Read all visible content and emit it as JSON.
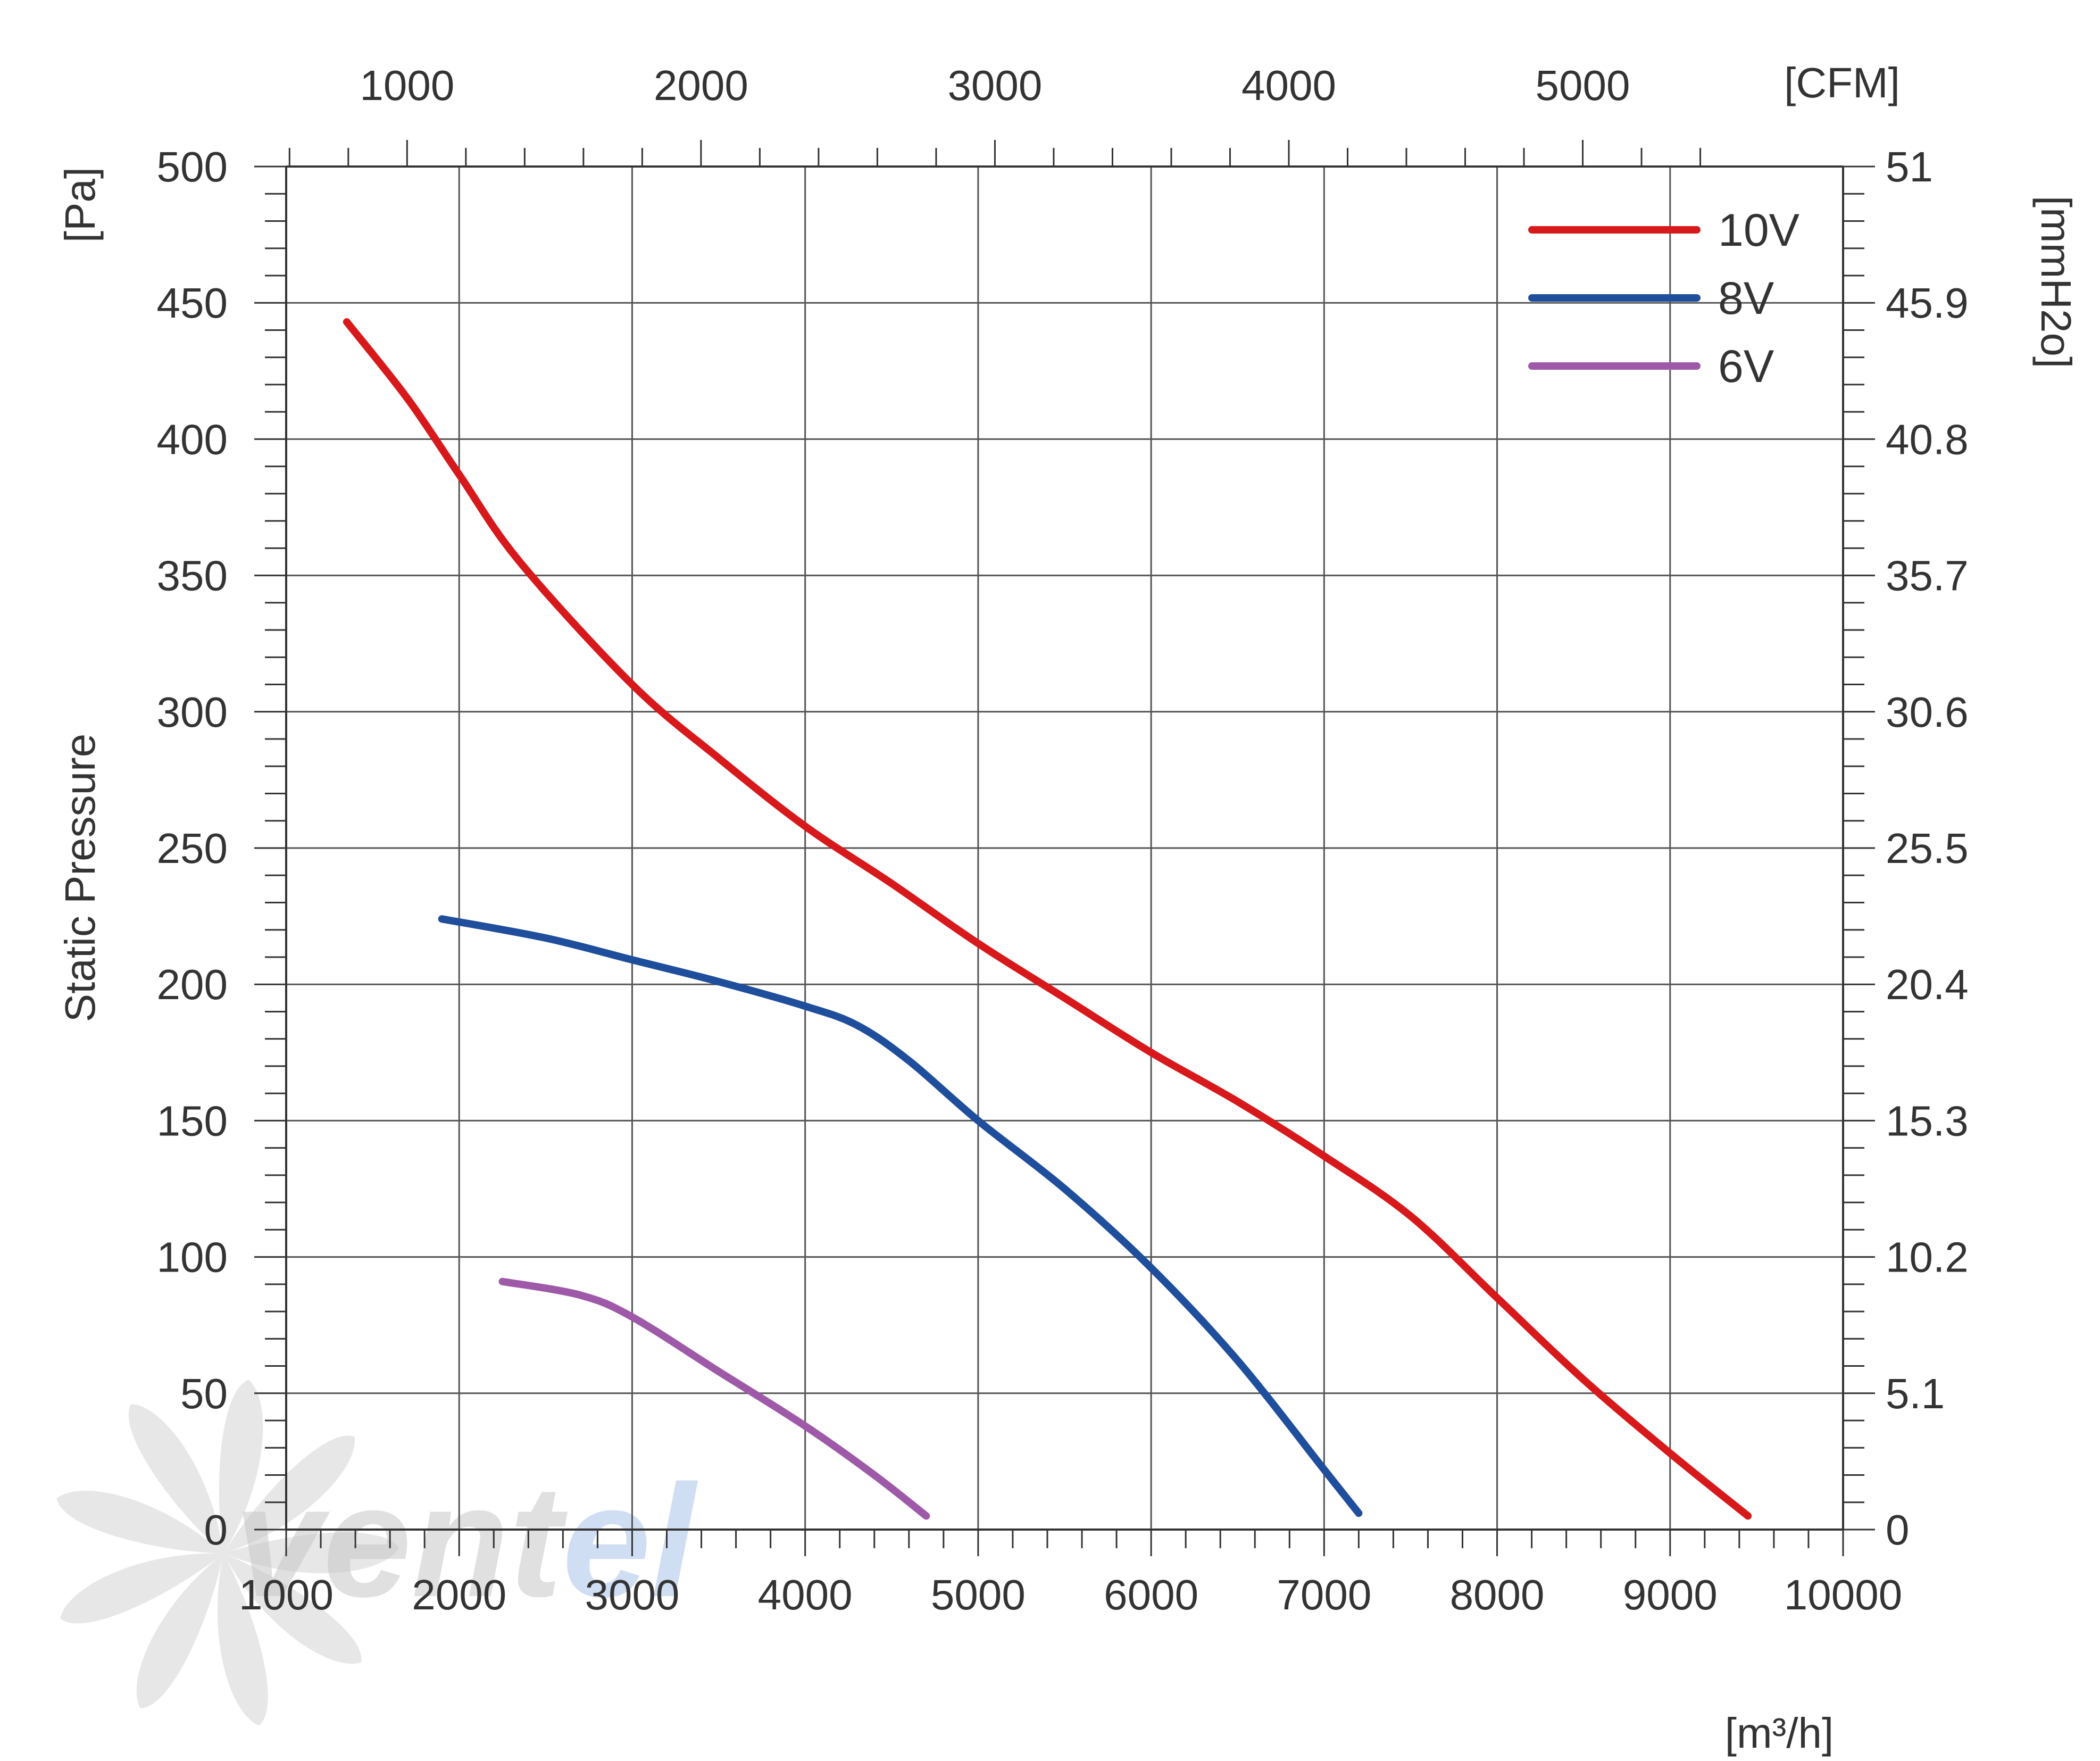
{
  "chart_data": {
    "type": "line",
    "title": "",
    "ylabel": "Static Pressure",
    "y_unit": "[Pa]",
    "y2_unit": "[mmH2o]",
    "x_unit": "[m³/h]",
    "x2_unit": "[CFM]",
    "xlim": [
      1000,
      10000
    ],
    "ylim": [
      0,
      500
    ],
    "grid": true,
    "legend_position": "top-right",
    "x_ticks": [
      1000,
      2000,
      3000,
      4000,
      5000,
      6000,
      7000,
      8000,
      9000,
      10000
    ],
    "y_ticks": [
      0,
      50,
      100,
      150,
      200,
      250,
      300,
      350,
      400,
      450,
      500
    ],
    "y2_ticks": [
      "0",
      "5.1",
      "10.2",
      "15.3",
      "20.4",
      "25.5",
      "30.6",
      "35.7",
      "40.8",
      "45.9",
      "51"
    ],
    "x2_ticks": [
      1000,
      2000,
      3000,
      4000,
      5000
    ],
    "series": [
      {
        "name": "10V",
        "color": "#d7191c",
        "x": [
          1350,
          1700,
          2000,
          2350,
          3000,
          3500,
          4000,
          4500,
          5000,
          5500,
          6000,
          6500,
          7000,
          7500,
          8000,
          8500,
          9000,
          9450
        ],
        "y": [
          443,
          415,
          387,
          355,
          310,
          283,
          258,
          237,
          215,
          195,
          175,
          157,
          137,
          115,
          85,
          55,
          28,
          5
        ]
      },
      {
        "name": "8V",
        "color": "#1f4e9c",
        "x": [
          1900,
          2500,
          3000,
          3500,
          4000,
          4300,
          4600,
          5000,
          5500,
          6000,
          6500,
          7000,
          7200
        ],
        "y": [
          224,
          217,
          209,
          201,
          192,
          185,
          172,
          150,
          125,
          96,
          62,
          22,
          6
        ]
      },
      {
        "name": "6V",
        "color": "#9e59a8",
        "x": [
          2250,
          2700,
          3000,
          3500,
          4000,
          4400,
          4700
        ],
        "y": [
          91,
          86,
          78,
          58,
          38,
          20,
          5
        ]
      }
    ]
  },
  "watermark": {
    "text_part1": "vent",
    "text_part2": "el"
  },
  "colors": {
    "gridline": "#555555",
    "axis": "#333333",
    "watermark_gray": "#c8c8c8",
    "watermark_blue": "#a9c4e8"
  }
}
